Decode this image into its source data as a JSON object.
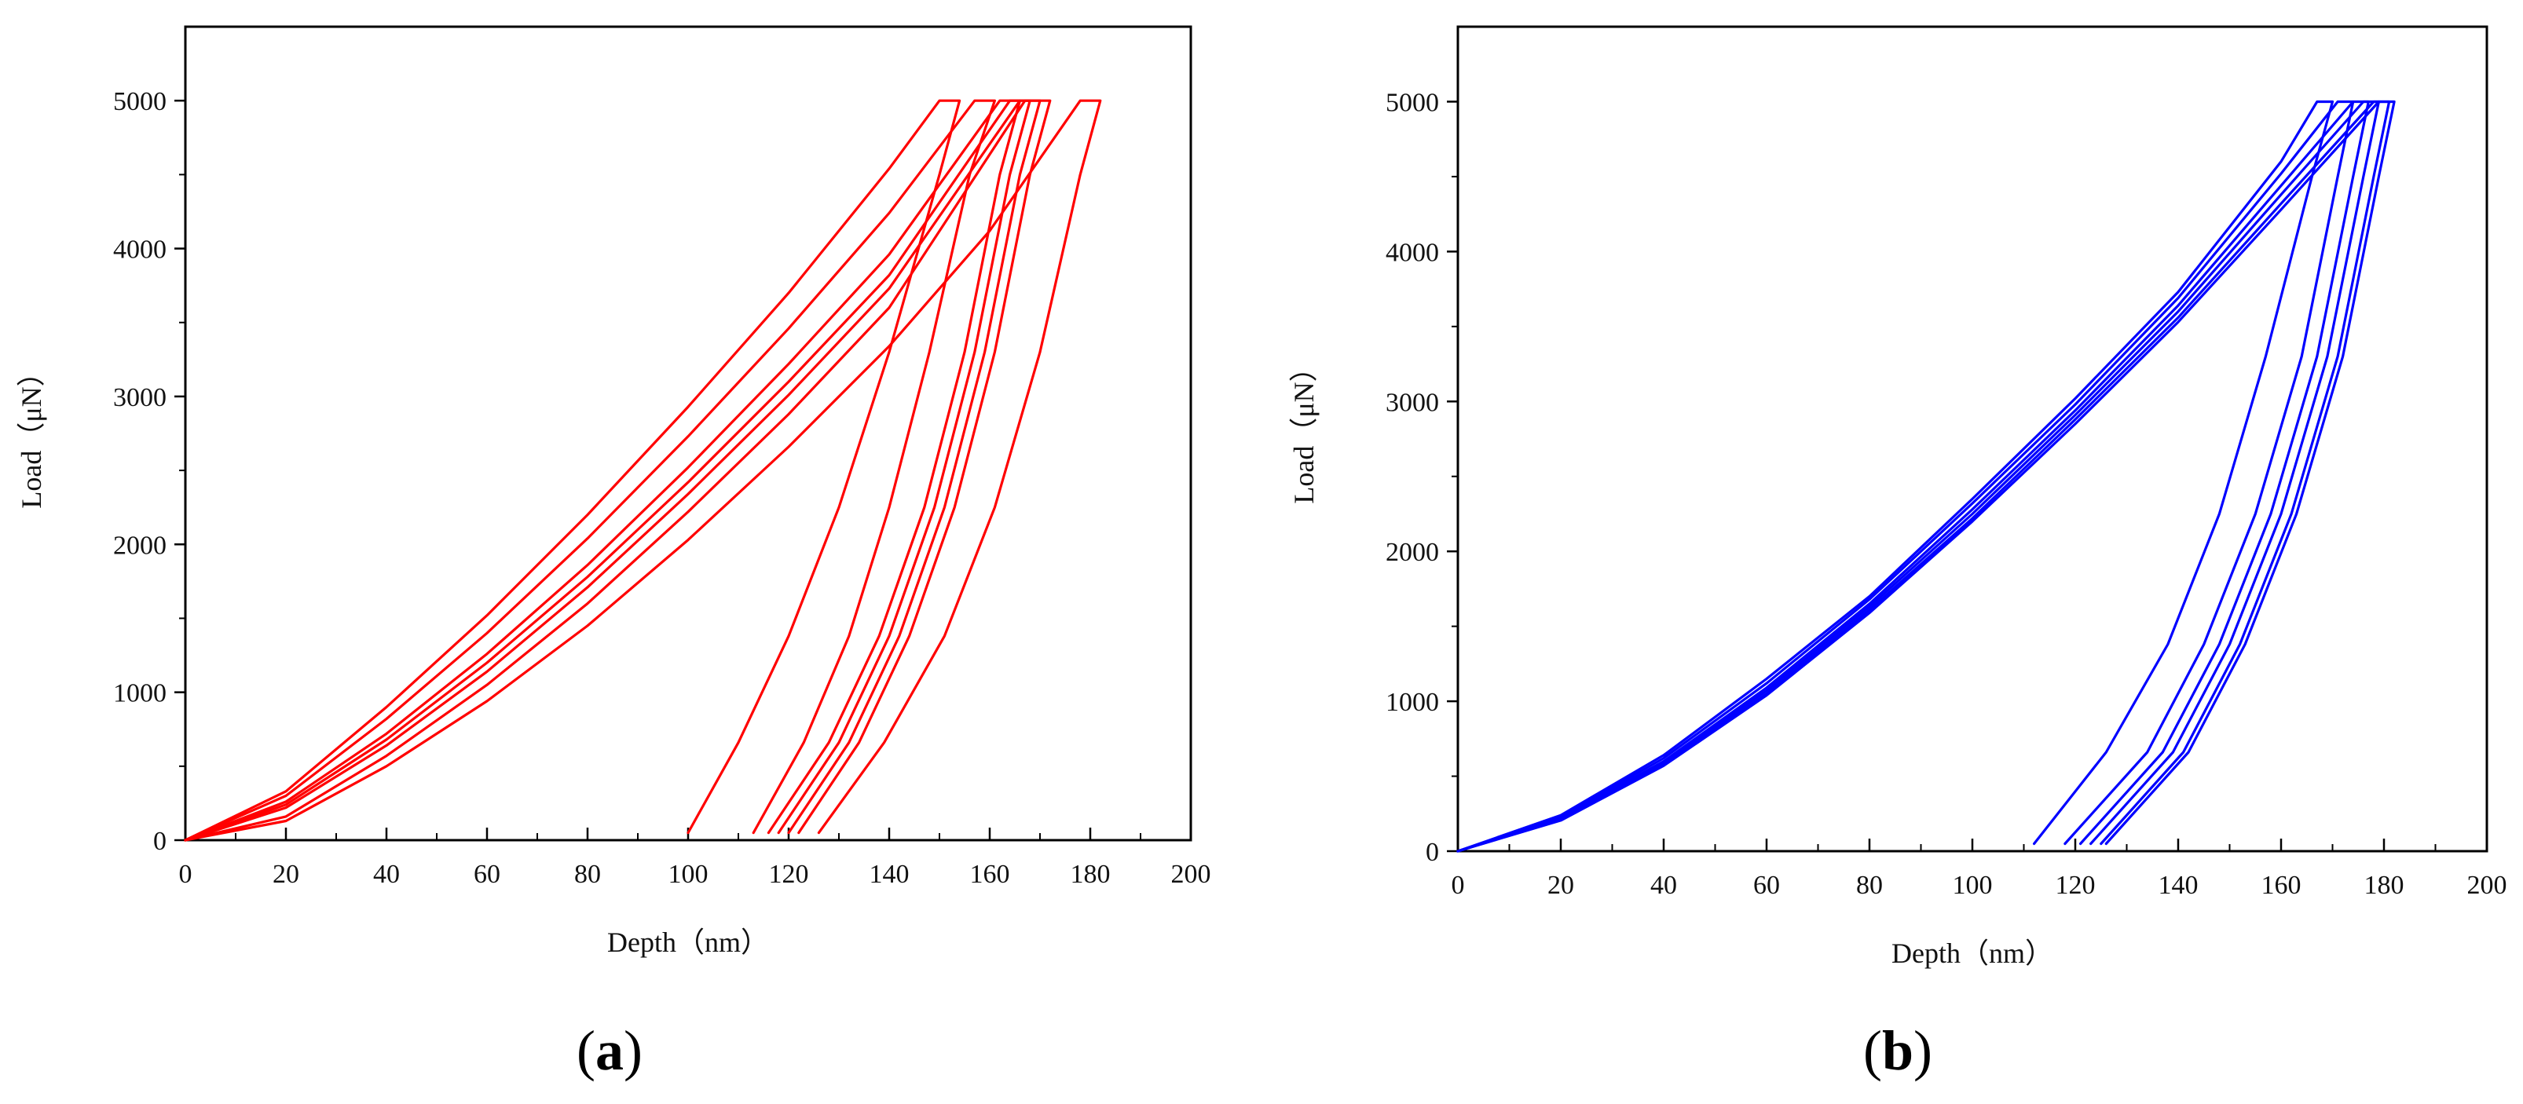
{
  "chart_data": [
    {
      "panel_label": "a",
      "type": "line",
      "xlabel": "Depth（nm）",
      "ylabel": "Load（μN）",
      "xlim": [
        0,
        200
      ],
      "ylim": [
        0,
        5500
      ],
      "x_ticks": [
        0,
        20,
        40,
        60,
        80,
        100,
        120,
        140,
        160,
        180,
        200
      ],
      "y_ticks": [
        0,
        1000,
        2000,
        3000,
        4000,
        5000
      ],
      "grid": false,
      "color": "#ff0000",
      "series": [
        {
          "values": [
            [
              0,
              0
            ],
            [
              20,
              330
            ],
            [
              40,
              900
            ],
            [
              60,
              1520
            ],
            [
              80,
              2200
            ],
            [
              100,
              2930
            ],
            [
              120,
              3700
            ],
            [
              140,
              4540
            ],
            [
              150,
              5000
            ],
            [
              154,
              5000
            ],
            [
              150,
              4500
            ],
            [
              140,
              3300
            ],
            [
              130,
              2250
            ],
            [
              120,
              1380
            ],
            [
              110,
              660
            ],
            [
              100,
              50
            ]
          ]
        },
        {
          "values": [
            [
              0,
              0
            ],
            [
              20,
              300
            ],
            [
              40,
              820
            ],
            [
              60,
              1400
            ],
            [
              80,
              2040
            ],
            [
              100,
              2730
            ],
            [
              120,
              3460
            ],
            [
              140,
              4240
            ],
            [
              157,
              5000
            ],
            [
              161,
              5000
            ],
            [
              156,
              4500
            ],
            [
              148,
              3300
            ],
            [
              140,
              2250
            ],
            [
              132,
              1380
            ],
            [
              123,
              660
            ],
            [
              113,
              50
            ]
          ]
        },
        {
          "values": [
            [
              0,
              0
            ],
            [
              20,
              260
            ],
            [
              40,
              720
            ],
            [
              60,
              1260
            ],
            [
              80,
              1860
            ],
            [
              100,
              2520
            ],
            [
              120,
              3220
            ],
            [
              140,
              3960
            ],
            [
              162,
              5000
            ],
            [
              166,
              5000
            ],
            [
              162,
              4500
            ],
            [
              155,
              3300
            ],
            [
              147,
              2250
            ],
            [
              138,
              1380
            ],
            [
              128,
              660
            ],
            [
              116,
              50
            ]
          ]
        },
        {
          "values": [
            [
              0,
              0
            ],
            [
              20,
              240
            ],
            [
              40,
              680
            ],
            [
              60,
              1200
            ],
            [
              80,
              1780
            ],
            [
              100,
              2420
            ],
            [
              120,
              3100
            ],
            [
              140,
              3820
            ],
            [
              164,
              5000
            ],
            [
              168,
              5000
            ],
            [
              164,
              4500
            ],
            [
              157,
              3300
            ],
            [
              149,
              2250
            ],
            [
              140,
              1380
            ],
            [
              130,
              660
            ],
            [
              118,
              50
            ]
          ]
        },
        {
          "values": [
            [
              0,
              0
            ],
            [
              20,
              220
            ],
            [
              40,
              640
            ],
            [
              60,
              1140
            ],
            [
              80,
              1710
            ],
            [
              100,
              2340
            ],
            [
              120,
              3010
            ],
            [
              140,
              3730
            ],
            [
              166,
              5000
            ],
            [
              170,
              5000
            ],
            [
              166,
              4500
            ],
            [
              159,
              3300
            ],
            [
              151,
              2250
            ],
            [
              142,
              1380
            ],
            [
              132,
              660
            ],
            [
              120,
              50
            ]
          ]
        },
        {
          "values": [
            [
              0,
              0
            ],
            [
              20,
              160
            ],
            [
              40,
              570
            ],
            [
              60,
              1050
            ],
            [
              80,
              1600
            ],
            [
              100,
              2220
            ],
            [
              120,
              2880
            ],
            [
              140,
              3600
            ],
            [
              167,
              5000
            ],
            [
              172,
              5000
            ],
            [
              168,
              4500
            ],
            [
              161,
              3300
            ],
            [
              153,
              2250
            ],
            [
              144,
              1380
            ],
            [
              134,
              660
            ],
            [
              122,
              50
            ]
          ]
        },
        {
          "values": [
            [
              0,
              0
            ],
            [
              20,
              130
            ],
            [
              40,
              500
            ],
            [
              60,
              940
            ],
            [
              80,
              1450
            ],
            [
              100,
              2030
            ],
            [
              120,
              2660
            ],
            [
              140,
              3340
            ],
            [
              160,
              4120
            ],
            [
              178,
              5000
            ],
            [
              182,
              5000
            ],
            [
              178,
              4500
            ],
            [
              170,
              3300
            ],
            [
              161,
              2250
            ],
            [
              151,
              1380
            ],
            [
              139,
              660
            ],
            [
              126,
              50
            ]
          ]
        }
      ]
    },
    {
      "panel_label": "b",
      "type": "line",
      "xlabel": "Depth（nm）",
      "ylabel": "Load（μN）",
      "xlim": [
        0,
        200
      ],
      "ylim": [
        0,
        5500
      ],
      "x_ticks": [
        0,
        20,
        40,
        60,
        80,
        100,
        120,
        140,
        160,
        180,
        200
      ],
      "y_ticks": [
        0,
        1000,
        2000,
        3000,
        4000,
        5000
      ],
      "grid": false,
      "color": "#0000ff",
      "series": [
        {
          "values": [
            [
              0,
              0
            ],
            [
              20,
              240
            ],
            [
              40,
              640
            ],
            [
              60,
              1150
            ],
            [
              80,
              1700
            ],
            [
              100,
              2350
            ],
            [
              120,
              3020
            ],
            [
              140,
              3730
            ],
            [
              160,
              4600
            ],
            [
              167,
              5000
            ],
            [
              170,
              5000
            ],
            [
              166,
              4500
            ],
            [
              157,
              3300
            ],
            [
              148,
              2250
            ],
            [
              138,
              1380
            ],
            [
              126,
              660
            ],
            [
              112,
              50
            ]
          ]
        },
        {
          "values": [
            [
              0,
              0
            ],
            [
              20,
              230
            ],
            [
              40,
              620
            ],
            [
              60,
              1120
            ],
            [
              80,
              1680
            ],
            [
              100,
              2320
            ],
            [
              120,
              2980
            ],
            [
              140,
              3690
            ],
            [
              160,
              4520
            ],
            [
              171,
              5000
            ],
            [
              174,
              5000
            ],
            [
              171,
              4500
            ],
            [
              164,
              3300
            ],
            [
              155,
              2250
            ],
            [
              145,
              1380
            ],
            [
              134,
              660
            ],
            [
              118,
              50
            ]
          ]
        },
        {
          "values": [
            [
              0,
              0
            ],
            [
              20,
              220
            ],
            [
              40,
              600
            ],
            [
              60,
              1090
            ],
            [
              80,
              1650
            ],
            [
              100,
              2280
            ],
            [
              120,
              2940
            ],
            [
              140,
              3640
            ],
            [
              160,
              4440
            ],
            [
              174,
              5000
            ],
            [
              177,
              5000
            ],
            [
              174,
              4500
            ],
            [
              167,
              3300
            ],
            [
              158,
              2250
            ],
            [
              148,
              1380
            ],
            [
              137,
              660
            ],
            [
              121,
              50
            ]
          ]
        },
        {
          "values": [
            [
              0,
              0
            ],
            [
              20,
              215
            ],
            [
              40,
              590
            ],
            [
              60,
              1070
            ],
            [
              80,
              1630
            ],
            [
              100,
              2250
            ],
            [
              120,
              2910
            ],
            [
              140,
              3600
            ],
            [
              160,
              4380
            ],
            [
              176,
              5000
            ],
            [
              179,
              5000
            ],
            [
              176,
              4500
            ],
            [
              169,
              3300
            ],
            [
              160,
              2250
            ],
            [
              150,
              1380
            ],
            [
              139,
              660
            ],
            [
              123,
              50
            ]
          ]
        },
        {
          "values": [
            [
              0,
              0
            ],
            [
              20,
              210
            ],
            [
              40,
              580
            ],
            [
              60,
              1050
            ],
            [
              80,
              1610
            ],
            [
              100,
              2220
            ],
            [
              120,
              2880
            ],
            [
              140,
              3560
            ],
            [
              160,
              4320
            ],
            [
              178,
              5000
            ],
            [
              181,
              5000
            ],
            [
              178,
              4500
            ],
            [
              171,
              3300
            ],
            [
              162,
              2250
            ],
            [
              152,
              1380
            ],
            [
              141,
              660
            ],
            [
              125,
              50
            ]
          ]
        },
        {
          "values": [
            [
              0,
              0
            ],
            [
              20,
              205
            ],
            [
              40,
              570
            ],
            [
              60,
              1040
            ],
            [
              80,
              1590
            ],
            [
              100,
              2200
            ],
            [
              120,
              2850
            ],
            [
              140,
              3530
            ],
            [
              160,
              4280
            ],
            [
              179,
              5000
            ],
            [
              182,
              5000
            ],
            [
              179,
              4500
            ],
            [
              172,
              3300
            ],
            [
              163,
              2250
            ],
            [
              153,
              1380
            ],
            [
              142,
              660
            ],
            [
              126,
              50
            ]
          ]
        }
      ]
    }
  ]
}
